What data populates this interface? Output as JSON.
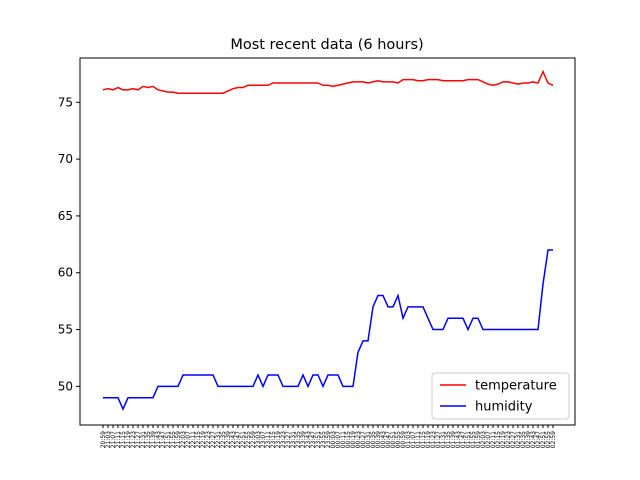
{
  "chart_data": {
    "type": "line",
    "title": "Most recent data (6 hours)",
    "categories": [
      "20:59",
      "21:03",
      "21:07",
      "21:11",
      "21:15",
      "21:19",
      "21:23",
      "21:27",
      "21:31",
      "21:35",
      "21:39",
      "21:43",
      "21:47",
      "21:51",
      "21:55",
      "21:59",
      "22:03",
      "22:07",
      "22:11",
      "22:15",
      "22:19",
      "22:23",
      "22:27",
      "22:31",
      "22:35",
      "22:39",
      "22:43",
      "22:47",
      "22:51",
      "22:55",
      "22:59",
      "23:03",
      "23:07",
      "23:11",
      "23:15",
      "23:19",
      "23:23",
      "23:27",
      "23:31",
      "23:35",
      "23:39",
      "23:43",
      "23:47",
      "23:51",
      "23:55",
      "23:59",
      "00:03",
      "00:07",
      "00:11",
      "00:15",
      "00:19",
      "00:23",
      "00:27",
      "00:31",
      "00:35",
      "00:39",
      "00:43",
      "00:47",
      "00:51",
      "00:55",
      "00:59",
      "01:03",
      "01:07",
      "01:11",
      "01:15",
      "01:19",
      "01:23",
      "01:27",
      "01:31",
      "01:35",
      "01:39",
      "01:43",
      "01:47",
      "01:51",
      "01:55",
      "01:59",
      "02:03",
      "02:07",
      "02:11",
      "02:15",
      "02:19",
      "02:23",
      "02:27",
      "02:31",
      "02:35",
      "02:39",
      "02:43",
      "02:47",
      "02:51",
      "02:55",
      "02:59"
    ],
    "series": [
      {
        "name": "temperature",
        "color": "#ff0000",
        "values": [
          76.1,
          76.2,
          76.1,
          76.3,
          76.1,
          76.1,
          76.2,
          76.1,
          76.4,
          76.3,
          76.4,
          76.1,
          76.0,
          75.9,
          75.9,
          75.8,
          75.8,
          75.8,
          75.8,
          75.8,
          75.8,
          75.8,
          75.8,
          75.8,
          75.8,
          76.0,
          76.2,
          76.3,
          76.3,
          76.5,
          76.5,
          76.5,
          76.5,
          76.5,
          76.7,
          76.7,
          76.7,
          76.7,
          76.7,
          76.7,
          76.7,
          76.7,
          76.7,
          76.7,
          76.5,
          76.5,
          76.4,
          76.5,
          76.6,
          76.7,
          76.8,
          76.8,
          76.8,
          76.7,
          76.8,
          76.9,
          76.8,
          76.8,
          76.8,
          76.7,
          77.0,
          77.0,
          77.0,
          76.9,
          76.9,
          77.0,
          77.0,
          77.0,
          76.9,
          76.9,
          76.9,
          76.9,
          76.9,
          77.0,
          77.0,
          77.0,
          76.8,
          76.6,
          76.5,
          76.6,
          76.8,
          76.8,
          76.7,
          76.6,
          76.7,
          76.7,
          76.8,
          76.7,
          77.7,
          76.7,
          76.5
        ]
      },
      {
        "name": "humidity",
        "color": "#0000ff",
        "values": [
          49,
          49,
          49,
          49,
          48,
          49,
          49,
          49,
          49,
          49,
          49,
          50,
          50,
          50,
          50,
          50,
          51,
          51,
          51,
          51,
          51,
          51,
          51,
          50,
          50,
          50,
          50,
          50,
          50,
          50,
          50,
          51,
          50,
          51,
          51,
          51,
          50,
          50,
          50,
          50,
          51,
          50,
          51,
          51,
          50,
          51,
          51,
          51,
          50,
          50,
          50,
          53,
          54,
          54,
          57,
          58,
          58,
          57,
          57,
          58,
          56,
          57,
          57,
          57,
          57,
          56,
          55,
          55,
          55,
          56,
          56,
          56,
          56,
          55,
          56,
          56,
          55,
          55,
          55,
          55,
          55,
          55,
          55,
          55,
          55,
          55,
          55,
          55,
          59,
          62,
          62
        ]
      }
    ],
    "ylim": [
      46.6,
      78.9
    ],
    "yticks": [
      50,
      55,
      60,
      65,
      70,
      75
    ],
    "legend": "lower right"
  }
}
